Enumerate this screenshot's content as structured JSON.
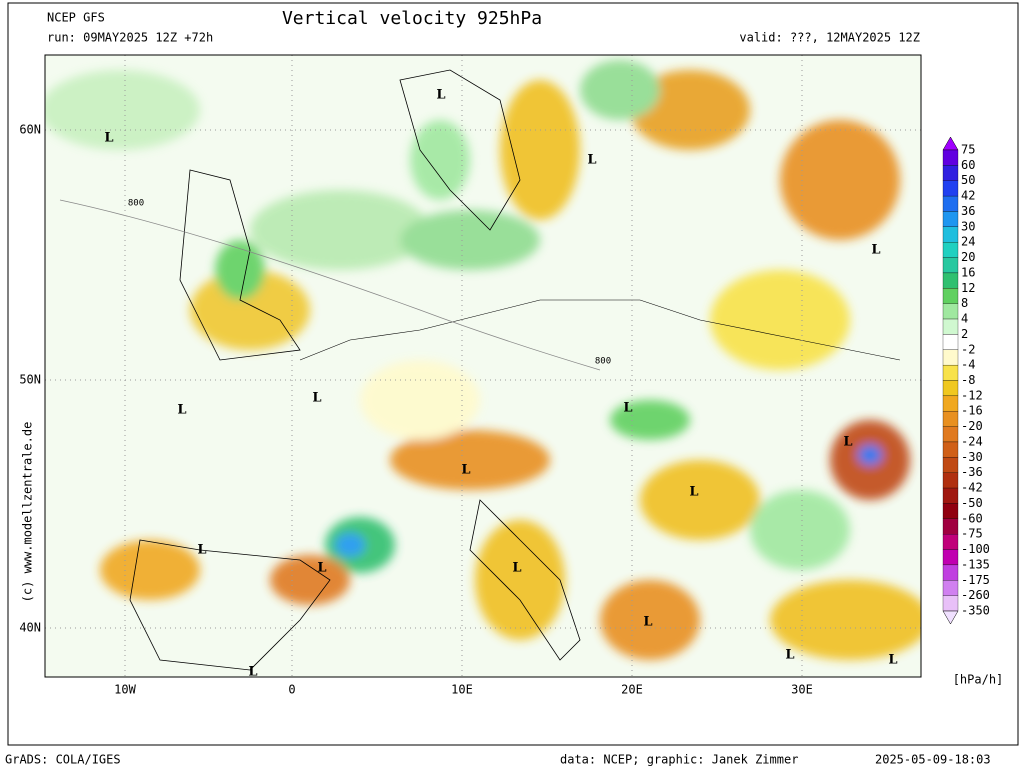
{
  "header": {
    "model": "NCEP GFS",
    "run": "run: 09MAY2025 12Z +72h",
    "title": "Vertical velocity 925hPa",
    "valid": "valid: ???, 12MAY2025 12Z"
  },
  "map": {
    "lat_labels": [
      "60N",
      "50N",
      "40N"
    ],
    "lon_labels": [
      "10W",
      "0",
      "10E",
      "20E",
      "30E"
    ],
    "pressure_lows": [
      "L",
      "L",
      "L",
      "L",
      "L",
      "L",
      "L",
      "L",
      "L",
      "L",
      "L",
      "L",
      "L",
      "L",
      "L",
      "L",
      "L"
    ],
    "contour_labels": [
      "800",
      "800"
    ],
    "watermark": "(c) www.modellzentrale.de"
  },
  "colorbar": {
    "levels": [
      75,
      60,
      50,
      42,
      36,
      30,
      24,
      20,
      16,
      12,
      8,
      4,
      2,
      -2,
      -4,
      -8,
      -12,
      -16,
      -20,
      -24,
      -30,
      -36,
      -42,
      -50,
      -60,
      -75,
      -100,
      -135,
      -175,
      -260,
      -350
    ],
    "colors": [
      "#a000ff",
      "#6000e0",
      "#3020e0",
      "#2040f0",
      "#1e6ef0",
      "#1e96f0",
      "#20bede",
      "#20d0c0",
      "#28c8a0",
      "#30c070",
      "#60d060",
      "#a0e8a0",
      "#d0f8d0",
      "#ffffff",
      "#fffacc",
      "#f8e24a",
      "#f0c820",
      "#f0a820",
      "#e89020",
      "#e07a20",
      "#d06018",
      "#c04a14",
      "#b03010",
      "#a01810",
      "#900010",
      "#a00040",
      "#c0007a",
      "#c000b0",
      "#c040e0",
      "#d080f0",
      "#e8c0f8",
      "#f0e0ff"
    ],
    "unit": "[hPa/h]"
  },
  "footer": {
    "software": "GrADS: COLA/IGES",
    "credit": "data: NCEP; graphic: Janek Zimmer",
    "timestamp": "2025-05-09-18:03"
  }
}
